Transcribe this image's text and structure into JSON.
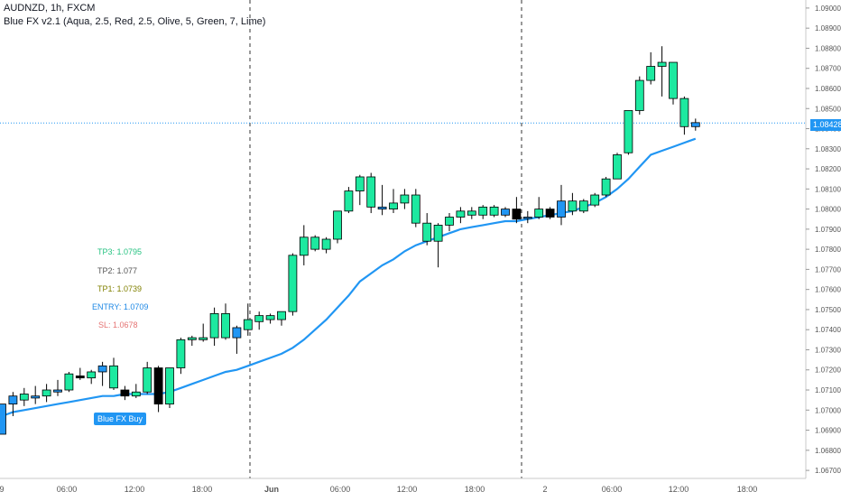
{
  "header": {
    "symbol_line": "AUDNZD, 1h, FXCM",
    "indicator_line": "Blue FX v2.1 (Aqua, 2.5, Red, 2.5, Olive, 5, Green, 7, Lime)"
  },
  "levels": [
    {
      "label": "TP3: 1.0795",
      "color": "#26c281"
    },
    {
      "label": "TP2: 1.077",
      "color": "#555555"
    },
    {
      "label": "TP1: 1.0739",
      "color": "#808000"
    },
    {
      "label": "ENTRY: 1.0709",
      "color": "#1e88e5"
    },
    {
      "label": "SL: 1.0678",
      "color": "#e57373"
    }
  ],
  "signal_label": "Blue FX Buy",
  "current_price_label": "1.08428",
  "colors": {
    "bull": "#1de9a0",
    "bear": "#1de9a0",
    "blue_candle": "#2196f3",
    "black_candle": "#000000",
    "ma_line": "#2196f3",
    "price_line": "#2196f3",
    "axis_text": "#555555"
  },
  "chart_data": {
    "type": "candlestick",
    "title": "AUDNZD, 1h, FXCM",
    "ylim": [
      1.0666,
      1.0904
    ],
    "y_ticks": [
      "1.09000",
      "1.08900",
      "1.08800",
      "1.08700",
      "1.08600",
      "1.08500",
      "1.08400",
      "1.08300",
      "1.08200",
      "1.08100",
      "1.08000",
      "1.07900",
      "1.07800",
      "1.07700",
      "1.07600",
      "1.07500",
      "1.07400",
      "1.07300",
      "1.07200",
      "1.07100",
      "1.07000",
      "1.06900",
      "1.06800",
      "1.06700"
    ],
    "x_ticks": [
      "9",
      "06:00",
      "12:00",
      "18:00",
      "Jun",
      "06:00",
      "12:00",
      "18:00",
      "2",
      "06:00",
      "12:00",
      "18:00"
    ],
    "session_breaks": [
      "Jun",
      "2"
    ],
    "current_price": 1.08428,
    "candles": [
      {
        "o": 1.0688,
        "h": 1.0703,
        "l": 1.0688,
        "c": 1.0703,
        "k": "blue"
      },
      {
        "o": 1.0703,
        "h": 1.0709,
        "l": 1.0697,
        "c": 1.0707,
        "k": "blue"
      },
      {
        "o": 1.0705,
        "h": 1.0711,
        "l": 1.0702,
        "c": 1.0708,
        "k": "green"
      },
      {
        "o": 1.0706,
        "h": 1.0712,
        "l": 1.0703,
        "c": 1.0707,
        "k": "blue"
      },
      {
        "o": 1.0707,
        "h": 1.0713,
        "l": 1.0704,
        "c": 1.071,
        "k": "green"
      },
      {
        "o": 1.0709,
        "h": 1.0715,
        "l": 1.0707,
        "c": 1.071,
        "k": "blue"
      },
      {
        "o": 1.071,
        "h": 1.0719,
        "l": 1.0709,
        "c": 1.0718,
        "k": "green"
      },
      {
        "o": 1.0717,
        "h": 1.0721,
        "l": 1.0715,
        "c": 1.0716,
        "k": "black"
      },
      {
        "o": 1.0716,
        "h": 1.072,
        "l": 1.0713,
        "c": 1.0719,
        "k": "green"
      },
      {
        "o": 1.0719,
        "h": 1.0724,
        "l": 1.0712,
        "c": 1.0722,
        "k": "blue"
      },
      {
        "o": 1.0722,
        "h": 1.0726,
        "l": 1.071,
        "c": 1.0711,
        "k": "green"
      },
      {
        "o": 1.071,
        "h": 1.0712,
        "l": 1.0705,
        "c": 1.0707,
        "k": "black"
      },
      {
        "o": 1.0707,
        "h": 1.0713,
        "l": 1.0706,
        "c": 1.0709,
        "k": "green"
      },
      {
        "o": 1.0709,
        "h": 1.0724,
        "l": 1.0708,
        "c": 1.0721,
        "k": "green"
      },
      {
        "o": 1.0721,
        "h": 1.0722,
        "l": 1.0699,
        "c": 1.0703,
        "k": "black"
      },
      {
        "o": 1.0703,
        "h": 1.0721,
        "l": 1.0701,
        "c": 1.0721,
        "k": "green"
      },
      {
        "o": 1.0721,
        "h": 1.0736,
        "l": 1.0718,
        "c": 1.0735,
        "k": "green"
      },
      {
        "o": 1.0735,
        "h": 1.0737,
        "l": 1.0732,
        "c": 1.0736,
        "k": "green"
      },
      {
        "o": 1.0735,
        "h": 1.0743,
        "l": 1.0734,
        "c": 1.0736,
        "k": "green"
      },
      {
        "o": 1.0736,
        "h": 1.0751,
        "l": 1.0732,
        "c": 1.0748,
        "k": "green"
      },
      {
        "o": 1.0748,
        "h": 1.0753,
        "l": 1.0735,
        "c": 1.0736,
        "k": "green"
      },
      {
        "o": 1.0736,
        "h": 1.0742,
        "l": 1.0728,
        "c": 1.0741,
        "k": "blue"
      },
      {
        "o": 1.074,
        "h": 1.0753,
        "l": 1.0737,
        "c": 1.0745,
        "k": "green"
      },
      {
        "o": 1.0744,
        "h": 1.0749,
        "l": 1.074,
        "c": 1.0747,
        "k": "green"
      },
      {
        "o": 1.0745,
        "h": 1.0748,
        "l": 1.0743,
        "c": 1.0747,
        "k": "green"
      },
      {
        "o": 1.0745,
        "h": 1.0749,
        "l": 1.0742,
        "c": 1.0749,
        "k": "green"
      },
      {
        "o": 1.0749,
        "h": 1.0778,
        "l": 1.0747,
        "c": 1.0777,
        "k": "green"
      },
      {
        "o": 1.0777,
        "h": 1.0792,
        "l": 1.0772,
        "c": 1.0786,
        "k": "green"
      },
      {
        "o": 1.0786,
        "h": 1.0787,
        "l": 1.0779,
        "c": 1.078,
        "k": "green"
      },
      {
        "o": 1.078,
        "h": 1.0786,
        "l": 1.0778,
        "c": 1.0785,
        "k": "green"
      },
      {
        "o": 1.0785,
        "h": 1.0799,
        "l": 1.0783,
        "c": 1.0799,
        "k": "green"
      },
      {
        "o": 1.0799,
        "h": 1.0811,
        "l": 1.0798,
        "c": 1.0809,
        "k": "green"
      },
      {
        "o": 1.0809,
        "h": 1.0817,
        "l": 1.0802,
        "c": 1.0816,
        "k": "green"
      },
      {
        "o": 1.0816,
        "h": 1.0818,
        "l": 1.0798,
        "c": 1.0801,
        "k": "green"
      },
      {
        "o": 1.0801,
        "h": 1.0812,
        "l": 1.0797,
        "c": 1.08,
        "k": "blue"
      },
      {
        "o": 1.08,
        "h": 1.081,
        "l": 1.0798,
        "c": 1.0803,
        "k": "green"
      },
      {
        "o": 1.0803,
        "h": 1.081,
        "l": 1.08,
        "c": 1.0807,
        "k": "green"
      },
      {
        "o": 1.0807,
        "h": 1.081,
        "l": 1.0791,
        "c": 1.0793,
        "k": "green"
      },
      {
        "o": 1.0793,
        "h": 1.0798,
        "l": 1.0782,
        "c": 1.0784,
        "k": "green"
      },
      {
        "o": 1.0784,
        "h": 1.0793,
        "l": 1.0771,
        "c": 1.0792,
        "k": "green"
      },
      {
        "o": 1.0792,
        "h": 1.0798,
        "l": 1.0789,
        "c": 1.0796,
        "k": "green"
      },
      {
        "o": 1.0796,
        "h": 1.0801,
        "l": 1.0793,
        "c": 1.0799,
        "k": "green"
      },
      {
        "o": 1.0797,
        "h": 1.0801,
        "l": 1.0795,
        "c": 1.0799,
        "k": "green"
      },
      {
        "o": 1.0797,
        "h": 1.0802,
        "l": 1.0795,
        "c": 1.0801,
        "k": "green"
      },
      {
        "o": 1.0801,
        "h": 1.0802,
        "l": 1.0796,
        "c": 1.0797,
        "k": "green"
      },
      {
        "o": 1.0797,
        "h": 1.0801,
        "l": 1.0796,
        "c": 1.08,
        "k": "blue"
      },
      {
        "o": 1.08,
        "h": 1.0806,
        "l": 1.0793,
        "c": 1.0795,
        "k": "black"
      },
      {
        "o": 1.0796,
        "h": 1.0799,
        "l": 1.0793,
        "c": 1.0796,
        "k": "blue"
      },
      {
        "o": 1.0796,
        "h": 1.0806,
        "l": 1.0795,
        "c": 1.08,
        "k": "green"
      },
      {
        "o": 1.08,
        "h": 1.0801,
        "l": 1.0795,
        "c": 1.0796,
        "k": "black"
      },
      {
        "o": 1.0796,
        "h": 1.0812,
        "l": 1.0792,
        "c": 1.0804,
        "k": "blue"
      },
      {
        "o": 1.0804,
        "h": 1.0808,
        "l": 1.0797,
        "c": 1.0799,
        "k": "green"
      },
      {
        "o": 1.0799,
        "h": 1.0805,
        "l": 1.0798,
        "c": 1.0804,
        "k": "green"
      },
      {
        "o": 1.0802,
        "h": 1.0808,
        "l": 1.0801,
        "c": 1.0807,
        "k": "green"
      },
      {
        "o": 1.0807,
        "h": 1.0816,
        "l": 1.0806,
        "c": 1.0815,
        "k": "green"
      },
      {
        "o": 1.0815,
        "h": 1.0828,
        "l": 1.0815,
        "c": 1.0827,
        "k": "green"
      },
      {
        "o": 1.0828,
        "h": 1.0849,
        "l": 1.0827,
        "c": 1.0849,
        "k": "green"
      },
      {
        "o": 1.0849,
        "h": 1.0866,
        "l": 1.0847,
        "c": 1.0864,
        "k": "green"
      },
      {
        "o": 1.0864,
        "h": 1.0878,
        "l": 1.0862,
        "c": 1.0871,
        "k": "green"
      },
      {
        "o": 1.0871,
        "h": 1.0881,
        "l": 1.0856,
        "c": 1.0873,
        "k": "green"
      },
      {
        "o": 1.0873,
        "h": 1.0873,
        "l": 1.0852,
        "c": 1.0855,
        "k": "green"
      },
      {
        "o": 1.0855,
        "h": 1.0856,
        "l": 1.0837,
        "c": 1.0841,
        "k": "green"
      },
      {
        "o": 1.0841,
        "h": 1.0845,
        "l": 1.0839,
        "c": 1.0843,
        "k": "blue"
      }
    ],
    "ma_series": {
      "values": [
        1.0697,
        1.0699,
        1.07,
        1.0701,
        1.0702,
        1.0703,
        1.0704,
        1.0705,
        1.0706,
        1.0707,
        1.0707,
        1.0708,
        1.0708,
        1.0708,
        1.0708,
        1.0709,
        1.0711,
        1.0713,
        1.0715,
        1.0717,
        1.0719,
        1.072,
        1.0722,
        1.0724,
        1.0726,
        1.0728,
        1.0731,
        1.0735,
        1.074,
        1.0745,
        1.0751,
        1.0757,
        1.0764,
        1.0768,
        1.0772,
        1.0775,
        1.0779,
        1.0782,
        1.0784,
        1.0786,
        1.0788,
        1.079,
        1.0791,
        1.0792,
        1.0793,
        1.0794,
        1.0794,
        1.0795,
        1.0796,
        1.0797,
        1.0798,
        1.0799,
        1.0801,
        1.0803,
        1.0806,
        1.081,
        1.0815,
        1.0821,
        1.0827,
        1.0829,
        1.0831,
        1.0833,
        1.0835
      ]
    }
  }
}
